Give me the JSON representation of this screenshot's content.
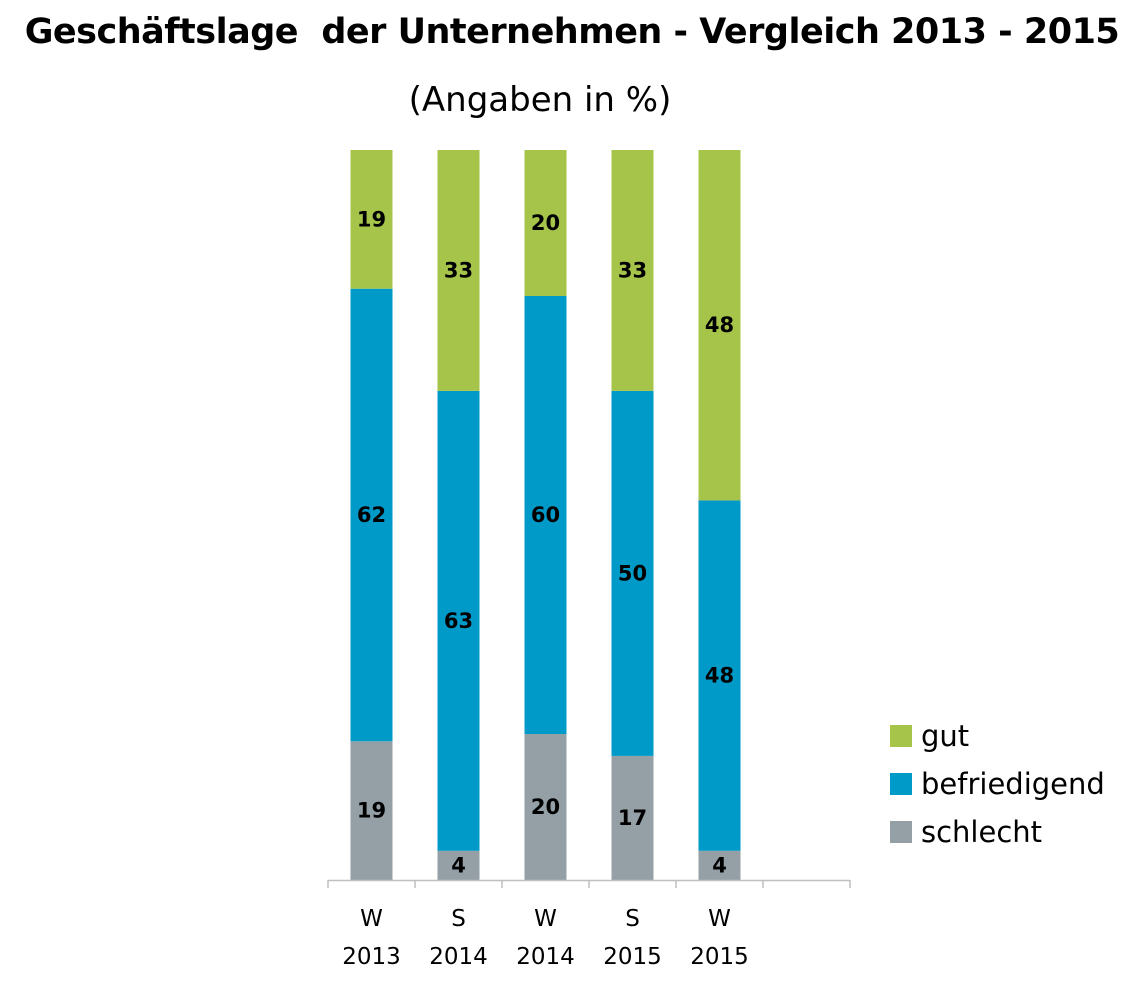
{
  "chart_data": {
    "type": "bar",
    "stacked": true,
    "title": "Geschäftslage  der Unternehmen - Vergleich 2013 - 2015",
    "subtitle": "(Angaben in %)",
    "categories": [
      {
        "line1": "W",
        "line2": "2013"
      },
      {
        "line1": "S",
        "line2": "2014"
      },
      {
        "line1": "W",
        "line2": "2014"
      },
      {
        "line1": "S",
        "line2": "2015"
      },
      {
        "line1": "W",
        "line2": "2015"
      }
    ],
    "series": [
      {
        "name": "schlecht",
        "color": "#949fa6",
        "values": [
          19,
          4,
          20,
          17,
          4
        ]
      },
      {
        "name": "befriedigend",
        "color": "#009ac9",
        "values": [
          62,
          63,
          60,
          50,
          48
        ]
      },
      {
        "name": "gut",
        "color": "#a5c449",
        "values": [
          19,
          33,
          20,
          33,
          48
        ]
      }
    ],
    "legend_order": [
      "gut",
      "befriedigend",
      "schlecht"
    ],
    "legend_position": "right",
    "ylim": [
      0,
      100
    ],
    "grid": false
  }
}
